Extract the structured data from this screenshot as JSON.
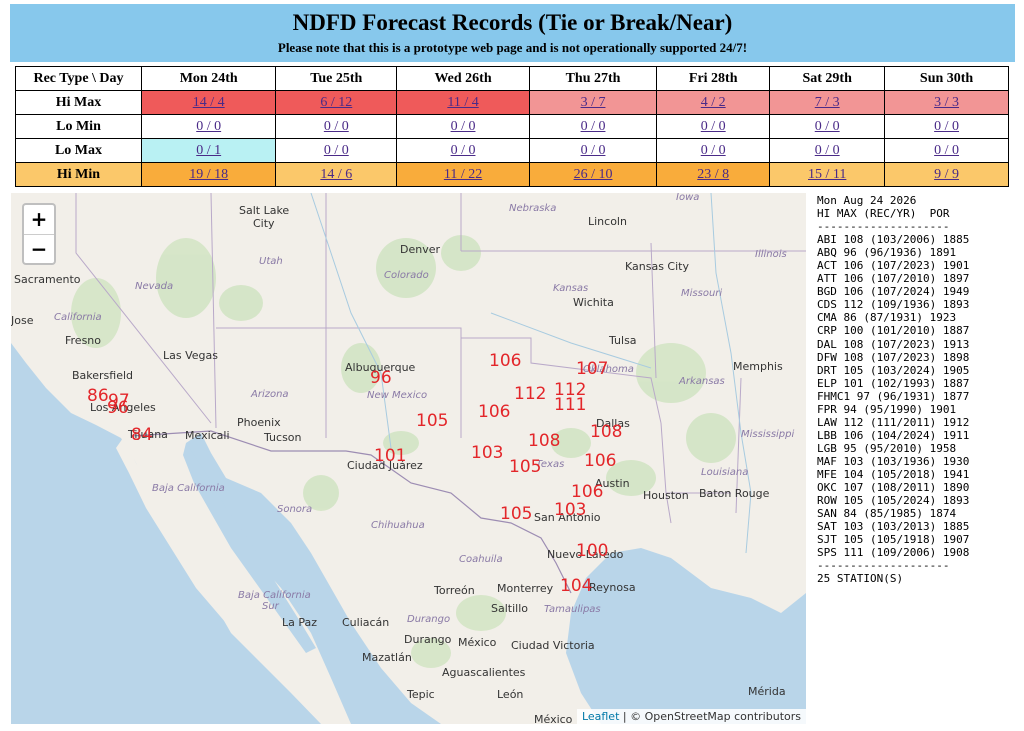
{
  "header": {
    "title": "NDFD Forecast Records (Tie or Break/Near)",
    "note": "Please note that this is a prototype web page and is not operationally supported 24/7!"
  },
  "table": {
    "corner": "Rec Type \\ Day",
    "days": [
      "Mon 24th",
      "Tue 25th",
      "Wed 26th",
      "Thu 27th",
      "Fri 28th",
      "Sat 29th",
      "Sun 30th"
    ],
    "rows": [
      {
        "label": "Hi Max",
        "cells": [
          "14 / 4",
          "6 / 12",
          "11 / 4",
          "3 / 7",
          "4 / 2",
          "7 / 3",
          "3 / 3"
        ]
      },
      {
        "label": "Lo Min",
        "cells": [
          "0 / 0",
          "0 / 0",
          "0 / 0",
          "0 / 0",
          "0 / 0",
          "0 / 0",
          "0 / 0"
        ]
      },
      {
        "label": "Lo Max",
        "cells": [
          "0 / 1",
          "0 / 0",
          "0 / 0",
          "0 / 0",
          "0 / 0",
          "0 / 0",
          "0 / 0"
        ]
      },
      {
        "label": "Hi Min",
        "cells": [
          "19 / 18",
          "14 / 6",
          "11 / 22",
          "26 / 10",
          "23 / 8",
          "15 / 11",
          "9 / 9"
        ]
      }
    ],
    "colors": {
      "hi_red": "#ef5a5a",
      "hi_pink": "#f29595",
      "lomax_cyan": "#b9f1f3",
      "himin_dark": "#f9ac3b",
      "himin_light": "#fbc86a"
    }
  },
  "map": {
    "zoom_in": "+",
    "zoom_out": "−",
    "places": {
      "salt_lake_city_1": "Salt Lake",
      "salt_lake_city_2": "City",
      "nebraska": "Nebraska",
      "iowa": "Iowa",
      "lincoln": "Lincoln",
      "denver": "Denver",
      "illinois": "Illinois",
      "sacramento": "Sacramento",
      "nevada": "Nevada",
      "utah": "Utah",
      "colorado": "Colorado",
      "kansas_city": "Kansas City",
      "kansas": "Kansas",
      "missouri": "Missouri",
      "wichita": "Wichita",
      "jose": "Jose",
      "california": "California",
      "fresno": "Fresno",
      "tulsa": "Tulsa",
      "las_vegas": "Las Vegas",
      "memphis": "Memphis",
      "bakersfield": "Bakersfield",
      "albuquerque": "Albuquerque",
      "oklahoma": "Oklahoma",
      "arkansas": "Arkansas",
      "los_angeles": "Los Angeles",
      "arizona": "Arizona",
      "new_mexico": "New Mexico",
      "phoenix": "Phoenix",
      "tijuana": "Tijuana",
      "mexicali": "Mexicali",
      "tucson": "Tucson",
      "dallas": "Dallas",
      "mississippi": "Mississippi",
      "ciudad_juarez": "Ciudad Juárez",
      "texas": "Texas",
      "louisiana": "Louisiana",
      "baja_california": "Baja California",
      "austin": "Austin",
      "houston": "Houston",
      "baton_rouge": "Baton Rouge",
      "sonora": "Sonora",
      "chihuahua": "Chihuahua",
      "san_antonio": "San Antonio",
      "nuevo_laredo": "Nuevo Laredo",
      "coahuila": "Coahuila",
      "baja_california_sur_1": "Baja California",
      "baja_california_sur_2": "Sur",
      "torreon": "Torreón",
      "monterrey": "Monterrey",
      "reynosa": "Reynosa",
      "saltillo": "Saltillo",
      "tamaulipas": "Tamaulipas",
      "la_paz": "La Paz",
      "culiacan": "Culiacán",
      "durango_state": "Durango",
      "durango": "Durango",
      "mexico": "México",
      "ciudad_victoria": "Ciudad Victoria",
      "mazatlan": "Mazatlán",
      "aguascalientes": "Aguascalientes",
      "tepic": "Tepic",
      "leon": "León",
      "merida": "Mérida",
      "mexico_city": "México"
    },
    "record_labels": [
      {
        "text": "86"
      },
      {
        "text": "97"
      },
      {
        "text": "96"
      },
      {
        "text": "84"
      },
      {
        "text": "96"
      },
      {
        "text": "105"
      },
      {
        "text": "101"
      },
      {
        "text": "106"
      },
      {
        "text": "106"
      },
      {
        "text": "112"
      },
      {
        "text": "112"
      },
      {
        "text": "111"
      },
      {
        "text": "107"
      },
      {
        "text": "103"
      },
      {
        "text": "108"
      },
      {
        "text": "105"
      },
      {
        "text": "108"
      },
      {
        "text": "106"
      },
      {
        "text": "106"
      },
      {
        "text": "105"
      },
      {
        "text": "103"
      },
      {
        "text": "100"
      },
      {
        "text": "104"
      }
    ],
    "attribution_leaflet": "Leaflet",
    "attribution_rest": " | © OpenStreetMap contributors"
  },
  "side": {
    "date": "Mon Aug 24 2026",
    "header": "HI MAX (REC/YR)  POR",
    "divider": "--------------------",
    "rows": [
      "ABI 108 (103/2006) 1885",
      "ABQ 96 (96/1936) 1891",
      "ACT 106 (107/2023) 1901",
      "ATT 106 (107/2010) 1897",
      "BGD 106 (107/2024) 1949",
      "CDS 112 (109/1936) 1893",
      "CMA 86 (87/1931) 1923",
      "CRP 100 (101/2010) 1887",
      "DAL 108 (107/2023) 1913",
      "DFW 108 (107/2023) 1898",
      "DRT 105 (103/2024) 1905",
      "ELP 101 (102/1993) 1887",
      "FHMC1 97 (96/1931) 1877",
      "FPR 94 (95/1990) 1901",
      "LAW 112 (111/2011) 1912",
      "LBB 106 (104/2024) 1911",
      "LGB 95 (95/2010) 1958",
      "MAF 103 (103/1936) 1930",
      "MFE 104 (105/2018) 1941",
      "OKC 107 (108/2011) 1890",
      "ROW 105 (105/2024) 1893",
      "SAN 84 (85/1985) 1874",
      "SAT 103 (103/2013) 1885",
      "SJT 105 (105/1918) 1907",
      "SPS 111 (109/2006) 1908"
    ],
    "divider2": "--------------------",
    "footer": "25 STATION(S)"
  }
}
